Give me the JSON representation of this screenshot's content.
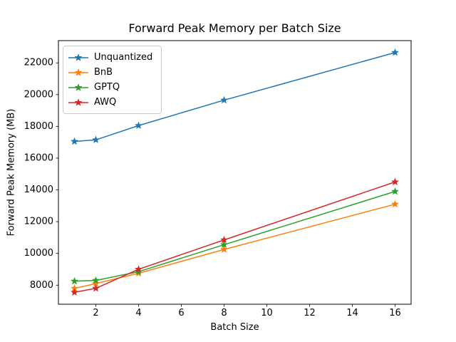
{
  "chart_data": {
    "type": "line",
    "title": "Forward Peak Memory per Batch Size",
    "xlabel": "Batch Size",
    "ylabel": "Forward Peak Memory (MB)",
    "x": [
      1,
      2,
      4,
      8,
      16
    ],
    "series": [
      {
        "name": "Unquantized",
        "color": "#1f77b4",
        "values": [
          17050,
          17150,
          18050,
          19650,
          22650
        ]
      },
      {
        "name": "BnB",
        "color": "#ff7f0e",
        "values": [
          7800,
          8100,
          8750,
          10250,
          13100
        ]
      },
      {
        "name": "GPTQ",
        "color": "#2ca02c",
        "values": [
          8250,
          8300,
          8850,
          10550,
          13900
        ]
      },
      {
        "name": "AWQ",
        "color": "#d62728",
        "values": [
          7550,
          7800,
          9000,
          10850,
          14500
        ]
      }
    ],
    "xticks": [
      2,
      4,
      6,
      8,
      10,
      12,
      14,
      16
    ],
    "yticks": [
      8000,
      10000,
      12000,
      14000,
      16000,
      18000,
      20000,
      22000
    ],
    "xlim": [
      0.25,
      16.75
    ],
    "ylim": [
      6800,
      23400
    ],
    "grid": false,
    "legend_position": "upper left",
    "marker": "star",
    "line_width": 1.5,
    "axis_color": "#000000",
    "background": "#ffffff"
  }
}
